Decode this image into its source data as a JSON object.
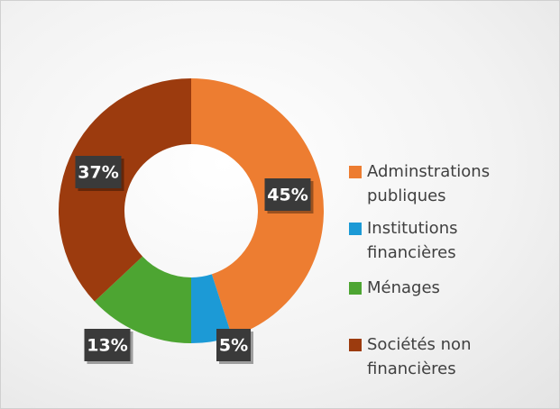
{
  "chart_data": {
    "type": "donut",
    "categories": [
      "Adminstrations publiques",
      "Institutions financières",
      "Ménages",
      "Sociétés non financières"
    ],
    "values": [
      45,
      5,
      13,
      37
    ],
    "value_labels": [
      "45%",
      "5%",
      "13%",
      "37%"
    ],
    "colors": [
      "#ED7D31",
      "#1C9AD6",
      "#4DA532",
      "#9C3B0E"
    ],
    "legend": "right"
  }
}
